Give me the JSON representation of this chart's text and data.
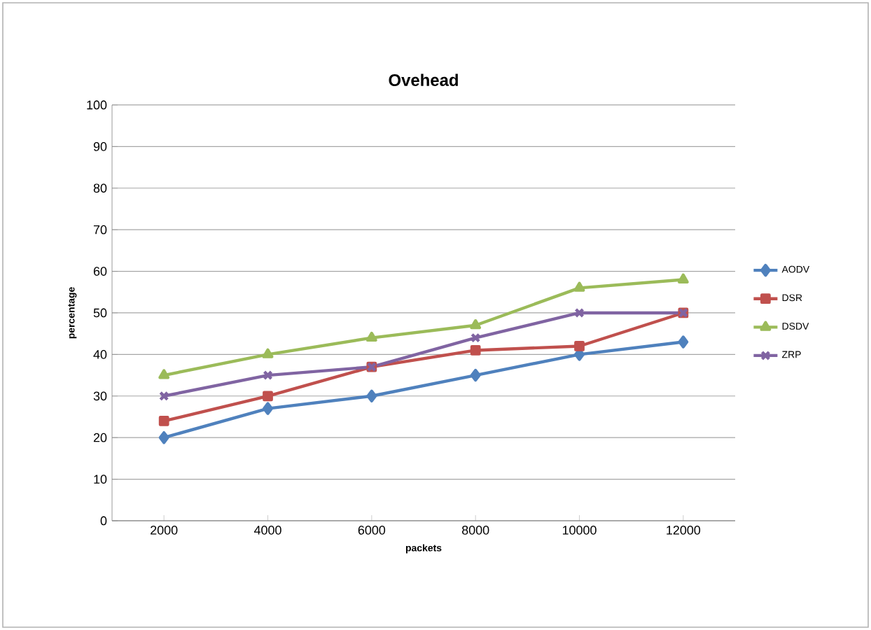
{
  "chart_data": {
    "type": "line",
    "title": "Ovehead",
    "xlabel": "packets",
    "ylabel": "percentage",
    "categories": [
      "2000",
      "4000",
      "6000",
      "8000",
      "10000",
      "12000"
    ],
    "series": [
      {
        "name": "AODV",
        "color": "#4f81bd",
        "marker": "diamond",
        "values": [
          20,
          27,
          30,
          35,
          40,
          43
        ]
      },
      {
        "name": "DSR",
        "color": "#c0504d",
        "marker": "square",
        "values": [
          24,
          30,
          37,
          41,
          42,
          50
        ]
      },
      {
        "name": "DSDV",
        "color": "#9bbb59",
        "marker": "triangle",
        "values": [
          35,
          40,
          44,
          47,
          56,
          58
        ]
      },
      {
        "name": "ZRP",
        "color": "#8064a2",
        "marker": "cross",
        "values": [
          30,
          35,
          37,
          44,
          50,
          50
        ]
      }
    ],
    "ylim": [
      0,
      100
    ],
    "yticks": [
      0,
      10,
      20,
      30,
      40,
      50,
      60,
      70,
      80,
      90,
      100
    ],
    "grid": "y",
    "legend": "right",
    "line_style": "solid"
  }
}
